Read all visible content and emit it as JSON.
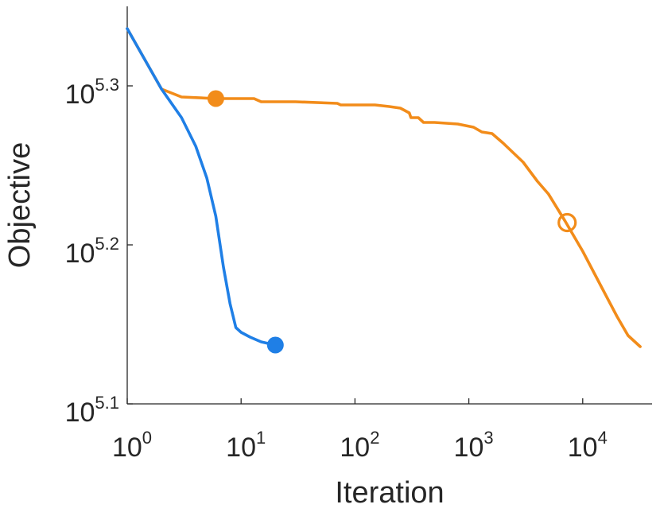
{
  "chart_data": {
    "type": "line",
    "title": "",
    "xlabel": "Iteration",
    "ylabel": "Objective",
    "xscale": "log",
    "yscale": "log",
    "xlim": [
      1,
      40000
    ],
    "ylim_exponent": [
      5.1,
      5.345
    ],
    "x_ticks": [
      {
        "base": "10",
        "exp": "0",
        "value": 1
      },
      {
        "base": "10",
        "exp": "1",
        "value": 10
      },
      {
        "base": "10",
        "exp": "2",
        "value": 100
      },
      {
        "base": "10",
        "exp": "3",
        "value": 1000
      },
      {
        "base": "10",
        "exp": "4",
        "value": 10000
      }
    ],
    "y_ticks": [
      {
        "base": "10",
        "exp": "5.1",
        "value": 5.1
      },
      {
        "base": "10",
        "exp": "5.2",
        "value": 5.2
      },
      {
        "base": "10",
        "exp": "5.3",
        "value": 5.3
      }
    ],
    "grid": false,
    "legend": "none",
    "series": [
      {
        "color": "#0072BD",
        "stroke": "#1f7fe6",
        "points": [
          [
            1,
            5.336
          ],
          [
            2,
            5.298
          ],
          [
            3,
            5.28
          ],
          [
            4,
            5.262
          ],
          [
            5,
            5.242
          ],
          [
            6,
            5.218
          ],
          [
            7,
            5.186
          ],
          [
            8,
            5.163
          ],
          [
            9,
            5.148
          ],
          [
            10,
            5.145
          ],
          [
            12,
            5.142
          ],
          [
            15,
            5.139
          ],
          [
            20,
            5.137
          ]
        ],
        "end_marker": {
          "x": 20,
          "y": 5.137,
          "style": "filled-circle"
        }
      },
      {
        "color": "#F28C1A",
        "stroke": "#f28c1a",
        "points": [
          [
            1,
            5.336
          ],
          [
            2,
            5.298
          ],
          [
            3,
            5.293
          ],
          [
            6,
            5.292
          ],
          [
            10,
            5.292
          ],
          [
            13,
            5.292
          ],
          [
            15,
            5.29
          ],
          [
            30,
            5.29
          ],
          [
            70,
            5.289
          ],
          [
            75,
            5.288
          ],
          [
            150,
            5.288
          ],
          [
            200,
            5.287
          ],
          [
            250,
            5.286
          ],
          [
            300,
            5.283
          ],
          [
            310,
            5.28
          ],
          [
            360,
            5.28
          ],
          [
            400,
            5.277
          ],
          [
            500,
            5.277
          ],
          [
            800,
            5.276
          ],
          [
            1100,
            5.274
          ],
          [
            1300,
            5.271
          ],
          [
            1600,
            5.27
          ],
          [
            2000,
            5.264
          ],
          [
            3000,
            5.252
          ],
          [
            4000,
            5.24
          ],
          [
            5000,
            5.232
          ],
          [
            7000,
            5.215
          ],
          [
            10000,
            5.196
          ],
          [
            15000,
            5.172
          ],
          [
            20000,
            5.155
          ],
          [
            25000,
            5.143
          ],
          [
            32000,
            5.136
          ]
        ],
        "markers": [
          {
            "x": 6,
            "y": 5.292,
            "style": "filled-circle"
          },
          {
            "x": 7300,
            "y": 5.214,
            "style": "open-circle"
          }
        ]
      }
    ]
  }
}
